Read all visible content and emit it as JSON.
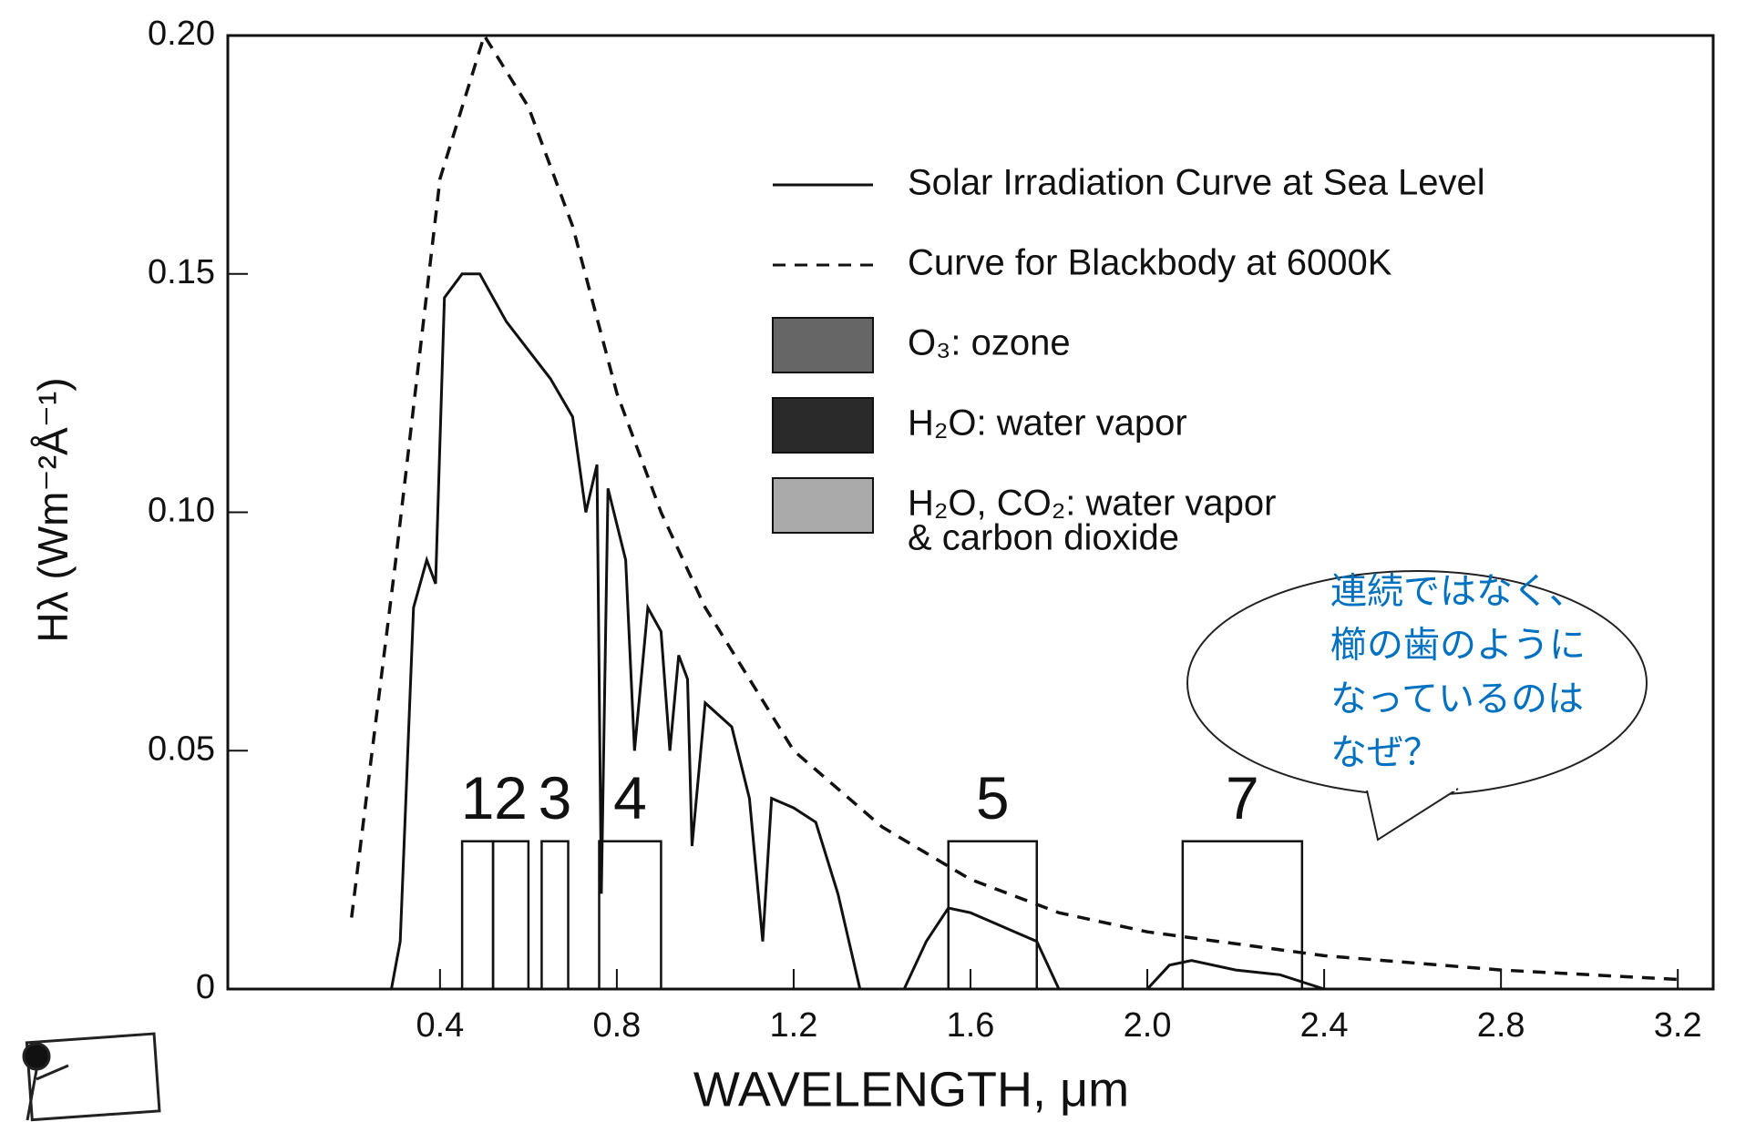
{
  "chart_data": {
    "type": "line",
    "x_label": "WAVELENGTH, μm",
    "y_label": "Hλ (Wm⁻²Å⁻¹)",
    "xlim": [
      -0.08,
      3.28
    ],
    "ylim": [
      0,
      0.2
    ],
    "xticks": [
      0.4,
      0.8,
      1.2,
      1.6,
      {
        "value": 2.0,
        "label": "2.0"
      },
      2.4,
      2.8,
      3.2
    ],
    "yticks": [
      0,
      0.05,
      {
        "value": 0.1,
        "label": "0.10"
      },
      0.15,
      {
        "value": 0.2,
        "label": "0.20"
      }
    ],
    "series": [
      {
        "name": "Solar Irradiation Curve at Sea Level",
        "color": "#111111",
        "dash": false,
        "x": [
          0.29,
          0.31,
          0.34,
          0.37,
          0.39,
          0.41,
          0.45,
          0.49,
          0.55,
          0.65,
          0.7,
          0.73,
          0.755,
          0.765,
          0.78,
          0.82,
          0.84,
          0.87,
          0.9,
          0.92,
          0.94,
          0.96,
          0.97,
          1.0,
          1.06,
          1.1,
          1.13,
          1.15,
          1.2,
          1.25,
          1.3,
          1.35,
          1.45,
          1.5,
          1.55,
          1.6,
          1.7,
          1.75,
          1.8,
          2.0,
          2.05,
          2.1,
          2.2,
          2.3,
          2.4
        ],
        "values": [
          0,
          0.01,
          0.08,
          0.09,
          0.085,
          0.145,
          0.15,
          0.15,
          0.14,
          0.128,
          0.12,
          0.1,
          0.11,
          0.02,
          0.105,
          0.09,
          0.05,
          0.08,
          0.075,
          0.05,
          0.07,
          0.065,
          0.03,
          0.06,
          0.055,
          0.04,
          0.01,
          0.04,
          0.038,
          0.035,
          0.02,
          0,
          0,
          0.01,
          0.017,
          0.016,
          0.012,
          0.01,
          0,
          0,
          0.005,
          0.006,
          0.004,
          0.003,
          0
        ]
      },
      {
        "name": "Curve for Blackbody at 6000K",
        "color": "#111111",
        "dash": true,
        "x": [
          0.2,
          0.3,
          0.4,
          0.5,
          0.6,
          0.7,
          0.8,
          0.9,
          1.0,
          1.2,
          1.4,
          1.6,
          1.8,
          2.0,
          2.4,
          2.8,
          3.2
        ],
        "values": [
          0.015,
          0.09,
          0.17,
          0.2,
          0.185,
          0.16,
          0.125,
          0.1,
          0.08,
          0.05,
          0.034,
          0.023,
          0.016,
          0.012,
          0.007,
          0.004,
          0.002
        ]
      }
    ],
    "absorbers": [
      {
        "label": [
          "O₃: ozone"
        ],
        "color": "#666666"
      },
      {
        "label": [
          "H₂O:   water vapor"
        ],
        "color": "#2a2a2a"
      },
      {
        "label": [
          "H₂O, CO₂: water vapor",
          "& carbon dioxide"
        ],
        "color": "#aaaaaa"
      }
    ],
    "bands": [
      {
        "label": "1",
        "range": [
          0.45,
          0.52
        ]
      },
      {
        "label": "2",
        "range": [
          0.52,
          0.6
        ]
      },
      {
        "label": "3",
        "range": [
          0.63,
          0.69
        ]
      },
      {
        "label": "4",
        "range": [
          0.76,
          0.9
        ]
      },
      {
        "label": "5",
        "range": [
          1.55,
          1.75
        ]
      },
      {
        "label": "7",
        "range": [
          2.08,
          2.35
        ]
      }
    ],
    "band_height": 0.031,
    "callout": [
      "連続ではなく、",
      "櫛の歯のように",
      "なっているのは",
      "なぜ？"
    ]
  }
}
